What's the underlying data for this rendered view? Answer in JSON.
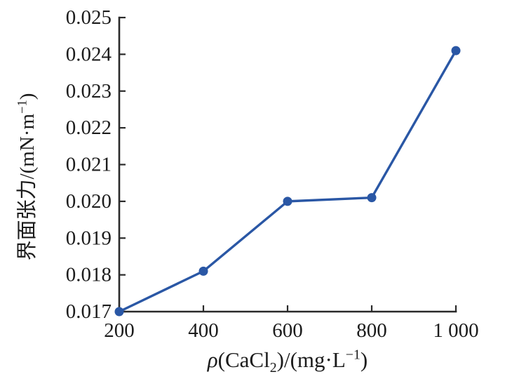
{
  "chart_data": {
    "type": "line",
    "title": "",
    "x": [
      200,
      400,
      600,
      800,
      1000
    ],
    "y": [
      0.017,
      0.0181,
      0.02,
      0.0201,
      0.0241
    ],
    "x_ticks": [
      200,
      400,
      600,
      800,
      1000
    ],
    "x_tick_labels": [
      "200",
      "400",
      "600",
      "800",
      "1 000"
    ],
    "y_ticks": [
      0.017,
      0.018,
      0.019,
      0.02,
      0.021,
      0.022,
      0.023,
      0.024,
      0.025
    ],
    "y_tick_labels": [
      "0.017",
      "0.018",
      "0.019",
      "0.020",
      "0.021",
      "0.022",
      "0.023",
      "0.024",
      "0.025"
    ],
    "xlim": [
      200,
      1000
    ],
    "ylim": [
      0.017,
      0.025
    ],
    "xlabel": {
      "text": "ρ(CaCl₂)/(mg·L⁻¹)",
      "parts": [
        {
          "t": "ρ",
          "i": true
        },
        {
          "t": "(CaCl"
        },
        {
          "t": "2",
          "s": "sub"
        },
        {
          "t": ")/(mg·L"
        },
        {
          "t": "−1",
          "s": "sup"
        },
        {
          "t": ")"
        }
      ]
    },
    "ylabel": {
      "text": "界面张力/(mN·m⁻¹)",
      "parts": [
        {
          "t": "界面张力/(mN·m"
        },
        {
          "t": "−1",
          "s": "sup"
        },
        {
          "t": ")"
        }
      ]
    },
    "grid": false,
    "legend": "none",
    "marker": "circle",
    "colors": {
      "line": "#2a57a5",
      "marker": "#2a57a5",
      "axis": "#2a2a2a",
      "tick_text": "#1c1c1c",
      "background": "#ffffff"
    }
  }
}
